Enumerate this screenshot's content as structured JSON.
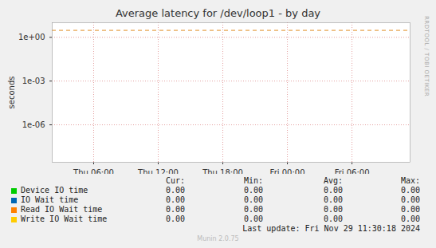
{
  "chart_data": {
    "type": "line",
    "title": "Average latency for /dev/loop1 - by day",
    "y_label": "seconds",
    "log": "y",
    "grid": true,
    "x": [
      2.15,
      35.4
    ],
    "xlim": [
      2.15,
      35.4
    ],
    "xticks": [
      {
        "value": 6,
        "label": "Thu 06:00"
      },
      {
        "value": 12,
        "label": "Thu 12:00"
      },
      {
        "value": 18,
        "label": "Thu 18:00"
      },
      {
        "value": 24,
        "label": "Fri 00:00"
      },
      {
        "value": 30,
        "label": "Fri 06:00"
      }
    ],
    "ylim": [
      2.7e-09,
      10
    ],
    "yticks": [
      {
        "value": 1,
        "label": "1e+00"
      },
      {
        "value": 0.001,
        "label": "1e-03"
      },
      {
        "value": 1e-06,
        "label": "1e-06"
      }
    ],
    "threshold": {
      "value": 3,
      "color": "#e08a1e",
      "line_style": "dashed"
    },
    "stats_headers": [
      "Cur:",
      "Min:",
      "Avg:",
      "Max:"
    ],
    "series": [
      {
        "name": "Device IO time",
        "color": "#00cc00",
        "values": [
          0,
          0
        ],
        "stats": [
          0,
          0,
          0,
          0
        ],
        "stats_labels": [
          "0.00",
          "0.00",
          "0.00",
          "0.00"
        ]
      },
      {
        "name": "IO Wait time",
        "color": "#0066b3",
        "values": [
          0,
          0
        ],
        "stats": [
          0,
          0,
          0,
          0
        ],
        "stats_labels": [
          "0.00",
          "0.00",
          "0.00",
          "0.00"
        ]
      },
      {
        "name": "Read IO Wait time",
        "color": "#ff8000",
        "values": [
          0,
          0
        ],
        "stats": [
          0,
          0,
          0,
          0
        ],
        "stats_labels": [
          "0.00",
          "0.00",
          "0.00",
          "0.00"
        ]
      },
      {
        "name": "Write IO Wait time",
        "color": "#ffcc00",
        "values": [
          0,
          0
        ],
        "stats": [
          0,
          0,
          0,
          0
        ],
        "stats_labels": [
          "0.00",
          "0.00",
          "0.00",
          "0.00"
        ]
      }
    ],
    "last_update": "Last update: Fri Nov 29 11:30:18 2024",
    "footer": "Munin 2.0.75",
    "side_text": "RRDTOOL / TOBI OETIKER"
  }
}
